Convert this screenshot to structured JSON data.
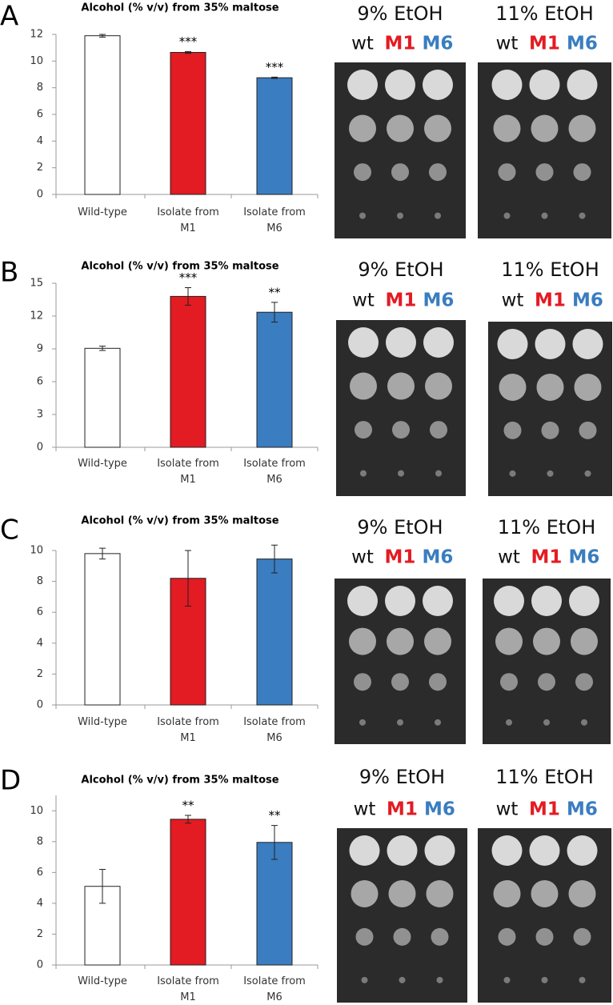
{
  "chart_data": [
    {
      "type": "bar",
      "panel": "A",
      "title": "Alcohol (% v/v) from 35% maltose",
      "categories": [
        "Wild-type",
        "Isolate from M1",
        "Isolate from M6"
      ],
      "values": [
        11.9,
        10.65,
        8.75
      ],
      "errors": [
        0.1,
        0.07,
        0.05
      ],
      "significance": [
        null,
        "***",
        "***"
      ],
      "colors": [
        "#ffffff",
        "#e31b23",
        "#3a7dc0"
      ],
      "ylim": [
        0,
        12
      ],
      "yticks": [
        0,
        2,
        4,
        6,
        8,
        10,
        12
      ],
      "plates": [
        {
          "label": "9% EtOH",
          "strains": [
            "wt",
            "M1",
            "M6"
          ]
        },
        {
          "label": "11% EtOH",
          "strains": [
            "wt",
            "M1",
            "M6"
          ]
        }
      ],
      "strain_colors": [
        "#111111",
        "#e31b23",
        "#3a7dc0"
      ]
    },
    {
      "type": "bar",
      "panel": "B",
      "title": "Alcohol (% v/v) from 35% maltose",
      "categories": [
        "Wild-type",
        "Isolate from M1",
        "Isolate from M6"
      ],
      "values": [
        9.05,
        13.8,
        12.35
      ],
      "errors": [
        0.2,
        0.8,
        0.9
      ],
      "significance": [
        null,
        "***",
        "**"
      ],
      "colors": [
        "#ffffff",
        "#e31b23",
        "#3a7dc0"
      ],
      "ylim": [
        0,
        15
      ],
      "yticks": [
        0,
        3,
        6,
        9,
        12,
        15
      ],
      "plates": [
        {
          "label": "9% EtOH",
          "strains": [
            "wt",
            "M1",
            "M6"
          ]
        },
        {
          "label": "11% EtOH",
          "strains": [
            "wt",
            "M1",
            "M6"
          ]
        }
      ],
      "strain_colors": [
        "#111111",
        "#e31b23",
        "#3a7dc0"
      ]
    },
    {
      "type": "bar",
      "panel": "C",
      "title": "Alcohol (% v/v) from 35% maltose",
      "categories": [
        "Wild-type",
        "Isolate from M1",
        "Isolate from M6"
      ],
      "values": [
        9.8,
        8.2,
        9.45
      ],
      "errors": [
        0.35,
        1.8,
        0.9
      ],
      "significance": [
        null,
        null,
        null
      ],
      "colors": [
        "#ffffff",
        "#e31b23",
        "#3a7dc0"
      ],
      "ylim": [
        0,
        10
      ],
      "yticks": [
        0,
        2,
        4,
        6,
        8,
        10
      ],
      "plates": [
        {
          "label": "9% EtOH",
          "strains": [
            "wt",
            "M1",
            "M6"
          ]
        },
        {
          "label": "11% EtOH",
          "strains": [
            "wt",
            "M1",
            "M6"
          ]
        }
      ],
      "strain_colors": [
        "#111111",
        "#e31b23",
        "#3a7dc0"
      ]
    },
    {
      "type": "bar",
      "panel": "D",
      "title": "Alcohol (% v/v) from 35% maltose",
      "categories": [
        "Wild-type",
        "Isolate from M1",
        "Isolate from M6"
      ],
      "values": [
        5.1,
        9.45,
        7.95
      ],
      "errors": [
        1.1,
        0.25,
        1.1
      ],
      "significance": [
        null,
        "**",
        "**"
      ],
      "colors": [
        "#ffffff",
        "#e31b23",
        "#3a7dc0"
      ],
      "ylim": [
        0,
        11
      ],
      "yticks": [
        0,
        2,
        4,
        6,
        8,
        10
      ],
      "plates": [
        {
          "label": "9% EtOH",
          "strains": [
            "wt",
            "M1",
            "M6"
          ]
        },
        {
          "label": "11% EtOH",
          "strains": [
            "wt",
            "M1",
            "M6"
          ]
        }
      ],
      "strain_colors": [
        "#111111",
        "#e31b23",
        "#3a7dc0"
      ]
    }
  ]
}
